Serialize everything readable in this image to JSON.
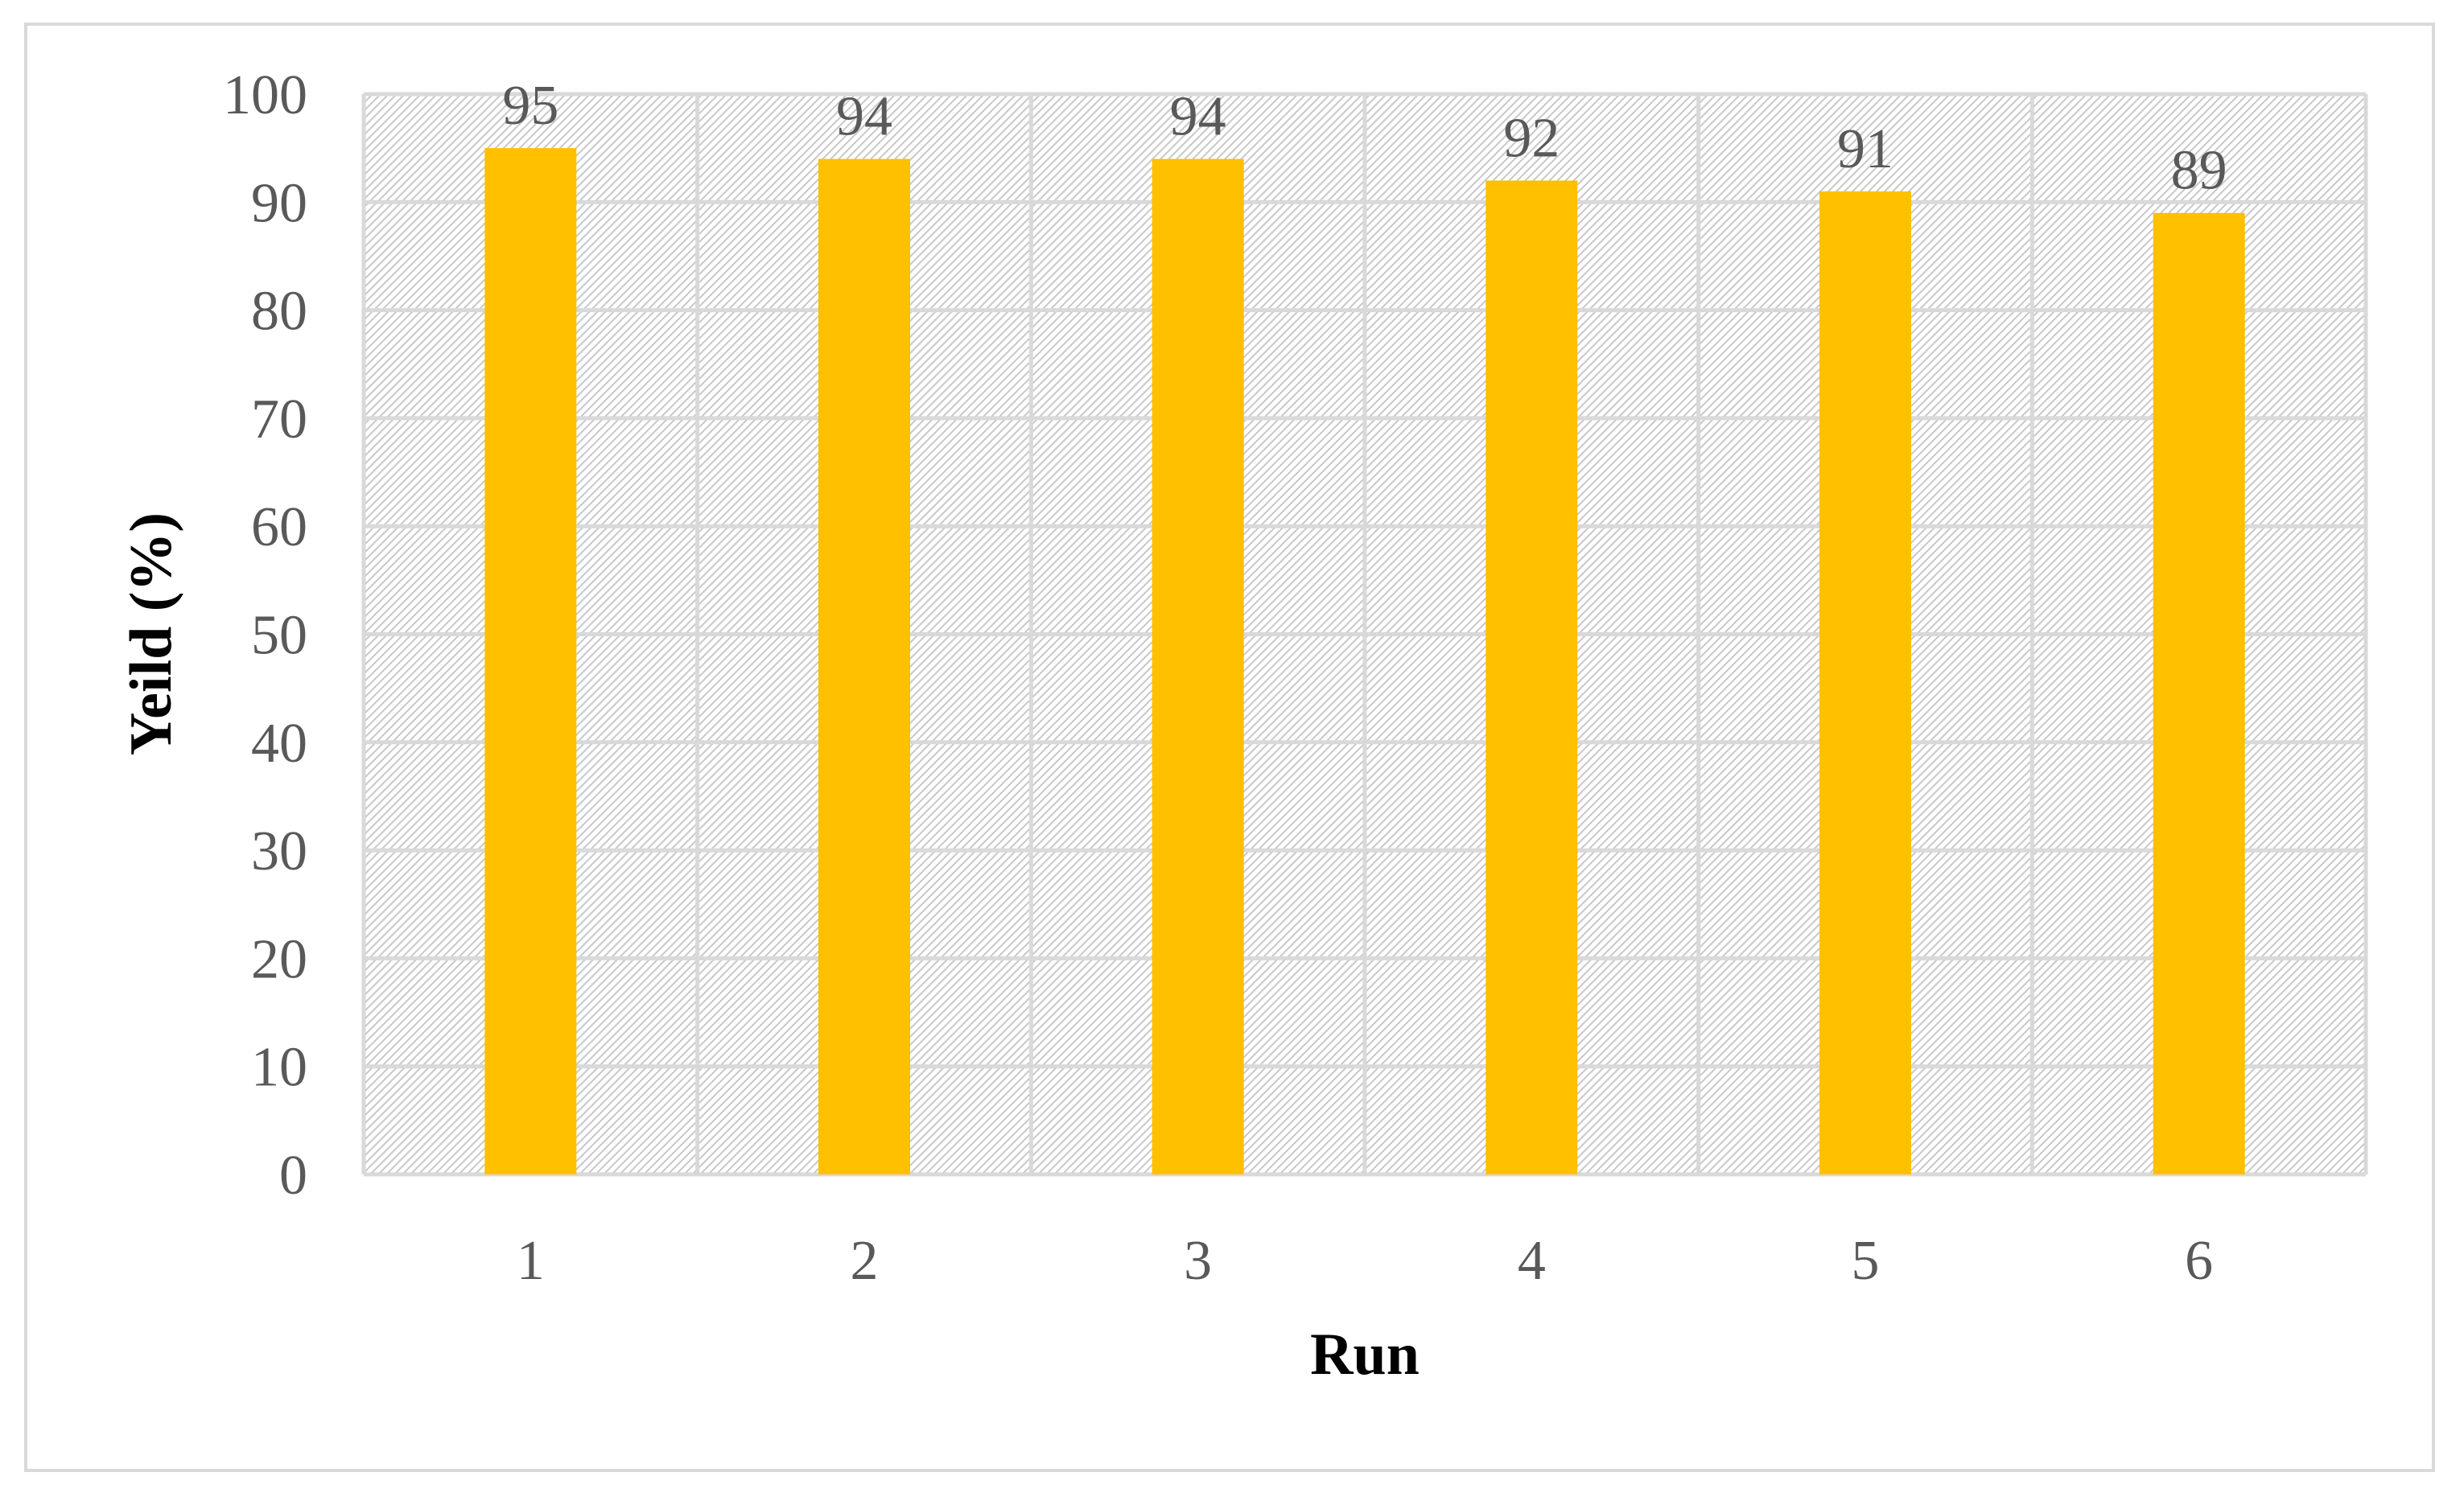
{
  "chart_data": {
    "type": "bar",
    "title": "",
    "xlabel": "Run",
    "ylabel": "Yeild (%)",
    "categories": [
      "1",
      "2",
      "3",
      "4",
      "5",
      "6"
    ],
    "values": [
      95,
      94,
      94,
      92,
      91,
      89
    ],
    "data_labels": [
      "95",
      "94",
      "94",
      "92",
      "91",
      "89"
    ],
    "ylim": [
      0,
      100
    ],
    "yticks": [
      "0",
      "10",
      "20",
      "30",
      "40",
      "50",
      "60",
      "70",
      "80",
      "90",
      "100"
    ],
    "grid": true,
    "legend": "none",
    "colors": {
      "bar": "#FFC000",
      "grid": "#d9d9d9",
      "plot_hatch": "#bfbfbf",
      "tick_text": "#595959",
      "axis_title": "#000000"
    }
  }
}
